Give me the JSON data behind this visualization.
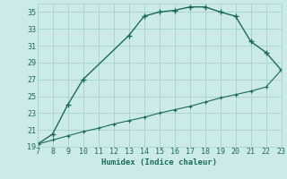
{
  "xlabel": "Humidex (Indice chaleur)",
  "ylabel": "",
  "bg_color": "#cceaea",
  "grid_color": "#aad4d4",
  "line_color": "#1a6b5a",
  "xlim": [
    7,
    23
  ],
  "ylim": [
    19,
    36
  ],
  "xticks": [
    7,
    8,
    9,
    10,
    11,
    12,
    13,
    14,
    15,
    16,
    17,
    18,
    19,
    20,
    21,
    22,
    23
  ],
  "yticks": [
    19,
    21,
    23,
    25,
    27,
    29,
    31,
    33,
    35
  ],
  "curve1_x": [
    7,
    8,
    9,
    10,
    13,
    14,
    15,
    16,
    17,
    18,
    19,
    20,
    21,
    22,
    23
  ],
  "curve1_y": [
    19.3,
    20.5,
    24.0,
    27.0,
    32.2,
    34.5,
    35.0,
    35.2,
    35.6,
    35.6,
    35.0,
    34.5,
    31.5,
    30.2,
    28.1
  ],
  "curve2_x": [
    7,
    8,
    9,
    10,
    11,
    12,
    13,
    14,
    15,
    16,
    17,
    18,
    19,
    20,
    21,
    22,
    23
  ],
  "curve2_y": [
    19.3,
    19.8,
    20.3,
    20.8,
    21.2,
    21.7,
    22.1,
    22.5,
    23.0,
    23.4,
    23.8,
    24.3,
    24.8,
    25.2,
    25.6,
    26.1,
    28.1
  ]
}
